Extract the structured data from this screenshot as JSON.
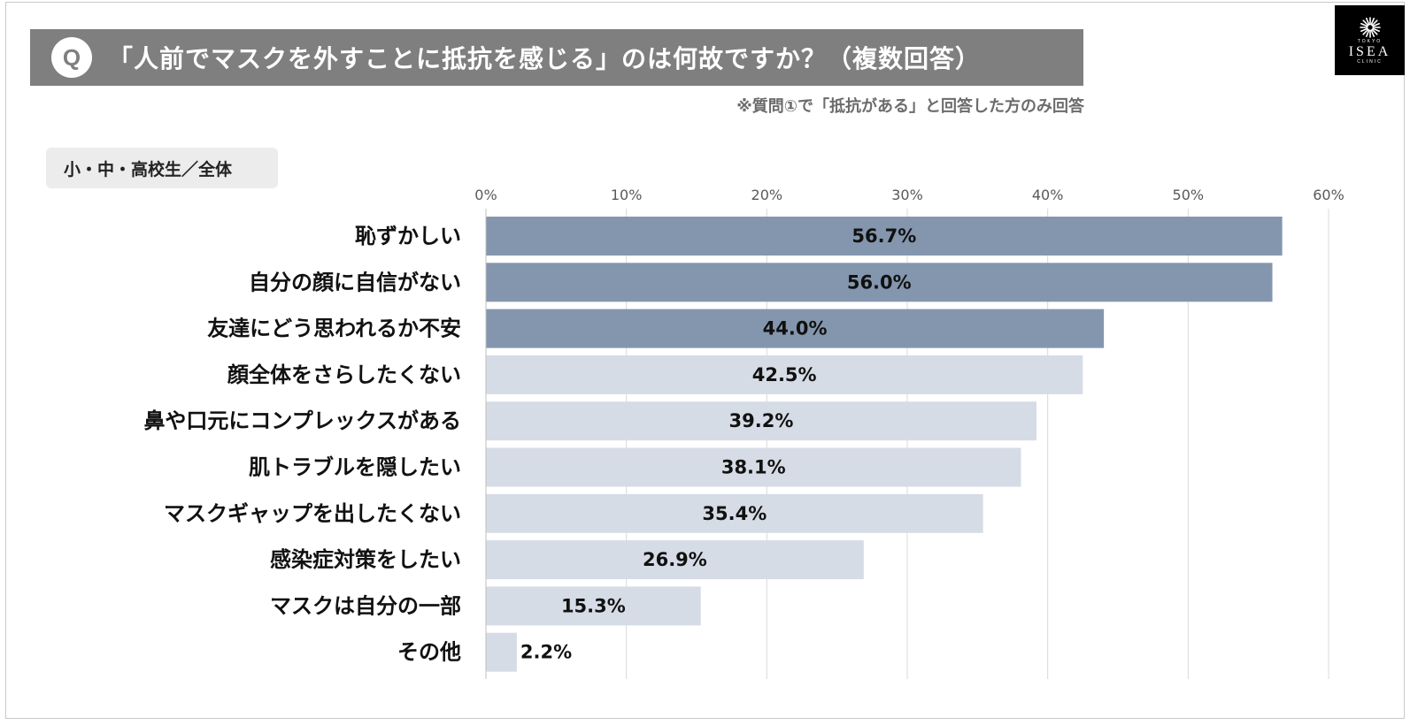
{
  "header": {
    "badge": "Q",
    "question": "「人前でマスクを外すことに抵抗を感じる」のは何故ですか？（複数回答）",
    "note": "※質問①で「抵抗がある」と回答した方のみ回答",
    "segment": "小・中・高校生／全体"
  },
  "logo": {
    "top_text": "TOKYO",
    "name": "ISEA",
    "bottom_text": "CLINIC"
  },
  "colors": {
    "highlight_bar": "#8496ae",
    "normal_bar": "#d6dce6",
    "banner": "#7f7f7f",
    "grid": "#d9d9d9"
  },
  "chart_data": {
    "type": "bar",
    "orientation": "horizontal",
    "categories": [
      "恥ずかしい",
      "自分の顔に自信がない",
      "友達にどう思われるか不安",
      "顔全体をさらしたくない",
      "鼻や口元にコンプレックスがある",
      "肌トラブルを隠したい",
      "マスクギャップを出したくない",
      "感染症対策をしたい",
      "マスクは自分の一部",
      "その他"
    ],
    "values": [
      56.7,
      56.0,
      44.0,
      42.5,
      39.2,
      38.1,
      35.4,
      26.9,
      15.3,
      2.2
    ],
    "value_labels": [
      "56.7%",
      "56.0%",
      "44.0%",
      "42.5%",
      "39.2%",
      "38.1%",
      "35.4%",
      "26.9%",
      "15.3%",
      "2.2%"
    ],
    "highlighted_top": 3,
    "xlim": [
      0,
      60
    ],
    "ticks": [
      "0%",
      "10%",
      "20%",
      "30%",
      "40%",
      "50%",
      "60%"
    ],
    "grid": true
  }
}
